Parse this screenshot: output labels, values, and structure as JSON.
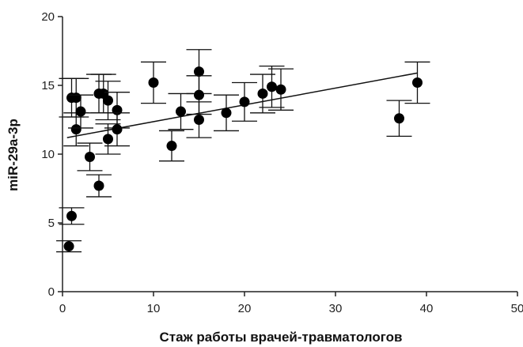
{
  "chart_data": {
    "type": "scatter",
    "xlabel": "Стаж работы врачей-травматологов",
    "ylabel": "miR-29a-3p",
    "xlim": [
      0,
      50
    ],
    "ylim": [
      0,
      20
    ],
    "x_ticks": [
      "0",
      "10",
      "20",
      "30",
      "40",
      "50"
    ],
    "y_ticks": [
      "0",
      "5",
      "10",
      "15",
      "20"
    ],
    "grid": false,
    "points": [
      {
        "x": 0.7,
        "y": 3.3,
        "err": 0.4
      },
      {
        "x": 1.0,
        "y": 5.5,
        "err": 0.6
      },
      {
        "x": 1.0,
        "y": 14.1,
        "err": 1.4
      },
      {
        "x": 1.5,
        "y": 14.1,
        "err": 1.4
      },
      {
        "x": 1.5,
        "y": 11.8,
        "err": 1.2
      },
      {
        "x": 2.0,
        "y": 13.1,
        "err": 1.2
      },
      {
        "x": 3.0,
        "y": 9.8,
        "err": 1.0
      },
      {
        "x": 4.0,
        "y": 7.7,
        "err": 0.8
      },
      {
        "x": 4.0,
        "y": 14.4,
        "err": 1.4
      },
      {
        "x": 4.5,
        "y": 14.4,
        "err": 1.4
      },
      {
        "x": 5.0,
        "y": 13.9,
        "err": 1.4
      },
      {
        "x": 5.0,
        "y": 11.1,
        "err": 1.1
      },
      {
        "x": 6.0,
        "y": 13.2,
        "err": 1.3
      },
      {
        "x": 6.0,
        "y": 11.8,
        "err": 1.2
      },
      {
        "x": 10.0,
        "y": 15.2,
        "err": 1.5
      },
      {
        "x": 12.0,
        "y": 10.6,
        "err": 1.1
      },
      {
        "x": 13.0,
        "y": 13.1,
        "err": 1.3
      },
      {
        "x": 15.0,
        "y": 16.0,
        "err": 1.6
      },
      {
        "x": 15.0,
        "y": 14.3,
        "err": 1.4
      },
      {
        "x": 15.0,
        "y": 12.5,
        "err": 1.3
      },
      {
        "x": 18.0,
        "y": 13.0,
        "err": 1.3
      },
      {
        "x": 20.0,
        "y": 13.8,
        "err": 1.4
      },
      {
        "x": 22.0,
        "y": 14.4,
        "err": 1.4
      },
      {
        "x": 23.0,
        "y": 14.9,
        "err": 1.5
      },
      {
        "x": 24.0,
        "y": 14.7,
        "err": 1.5
      },
      {
        "x": 37.0,
        "y": 12.6,
        "err": 1.3
      },
      {
        "x": 39.0,
        "y": 15.2,
        "err": 1.5
      }
    ],
    "trend_line": {
      "x": [
        0.5,
        39.0
      ],
      "y": [
        11.2,
        15.9
      ]
    }
  }
}
